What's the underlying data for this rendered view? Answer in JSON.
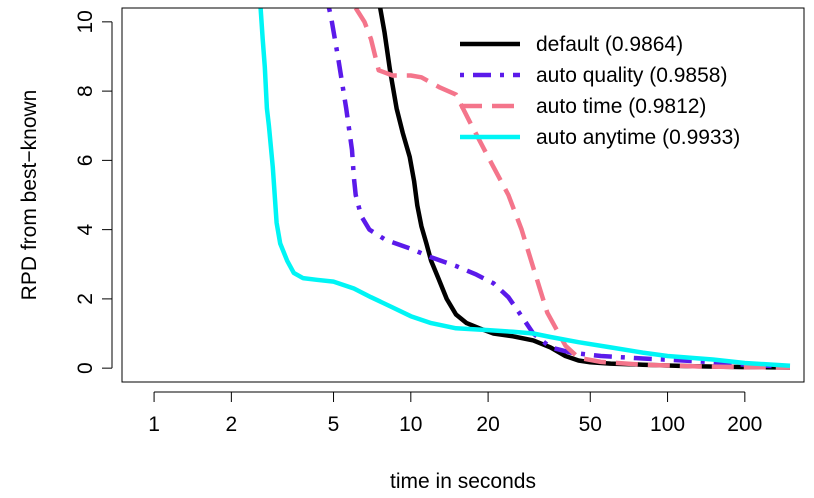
{
  "chart_data": {
    "type": "line",
    "xlabel": "time in seconds",
    "ylabel": "RPD from best−known",
    "xscale": "log",
    "xlim": [
      0.75,
      340
    ],
    "ylim": [
      -0.4,
      10.4
    ],
    "xticks": [
      1,
      2,
      5,
      10,
      20,
      50,
      100,
      200
    ],
    "yticks": [
      0,
      2,
      4,
      6,
      8,
      10
    ],
    "grid": false,
    "legend_position": "top-right",
    "series": [
      {
        "name": "default (0.9864)",
        "color": "#000000",
        "dash": "solid",
        "points": [
          [
            7.6,
            10.4
          ],
          [
            7.9,
            9.7
          ],
          [
            8.3,
            8.6
          ],
          [
            8.8,
            7.5
          ],
          [
            9.3,
            6.8
          ],
          [
            9.9,
            6.1
          ],
          [
            10.3,
            5.4
          ],
          [
            10.6,
            4.7
          ],
          [
            11.0,
            4.1
          ],
          [
            11.5,
            3.6
          ],
          [
            12.0,
            3.1
          ],
          [
            12.8,
            2.6
          ],
          [
            13.8,
            2.0
          ],
          [
            15.0,
            1.55
          ],
          [
            16.5,
            1.3
          ],
          [
            18.5,
            1.15
          ],
          [
            21,
            1.0
          ],
          [
            25,
            0.92
          ],
          [
            30,
            0.8
          ],
          [
            35,
            0.6
          ],
          [
            40,
            0.35
          ],
          [
            45,
            0.22
          ],
          [
            50,
            0.17
          ],
          [
            60,
            0.13
          ],
          [
            80,
            0.1
          ],
          [
            120,
            0.06
          ],
          [
            200,
            0.03
          ],
          [
            300,
            0.02
          ]
        ]
      },
      {
        "name": "auto quality (0.9858)",
        "color": "#5b1aea",
        "dash": "dashdot",
        "points": [
          [
            4.8,
            10.4
          ],
          [
            4.9,
            10.1
          ],
          [
            5.2,
            9.0
          ],
          [
            5.6,
            7.5
          ],
          [
            5.9,
            6.3
          ],
          [
            6.0,
            5.5
          ],
          [
            6.1,
            5.0
          ],
          [
            6.4,
            4.4
          ],
          [
            6.9,
            4.0
          ],
          [
            8.0,
            3.7
          ],
          [
            10.0,
            3.45
          ],
          [
            12.0,
            3.2
          ],
          [
            15.0,
            2.95
          ],
          [
            18.0,
            2.7
          ],
          [
            21.0,
            2.45
          ],
          [
            24.0,
            2.05
          ],
          [
            27.0,
            1.5
          ],
          [
            30.0,
            1.0
          ],
          [
            35.0,
            0.6
          ],
          [
            42.0,
            0.45
          ],
          [
            55.0,
            0.35
          ],
          [
            80.0,
            0.28
          ],
          [
            130.0,
            0.2
          ],
          [
            200.0,
            0.1
          ],
          [
            300.0,
            0.04
          ]
        ]
      },
      {
        "name": "auto time (0.9812)",
        "color": "#f4758b",
        "dash": "dashed",
        "points": [
          [
            6.1,
            10.4
          ],
          [
            6.6,
            10.0
          ],
          [
            7.0,
            9.5
          ],
          [
            7.5,
            8.6
          ],
          [
            8.5,
            8.45
          ],
          [
            10.0,
            8.45
          ],
          [
            11.0,
            8.4
          ],
          [
            13.0,
            8.1
          ],
          [
            15.0,
            7.9
          ],
          [
            17.0,
            7.1
          ],
          [
            20.0,
            6.1
          ],
          [
            24.0,
            5.0
          ],
          [
            27.0,
            4.0
          ],
          [
            30.0,
            2.9
          ],
          [
            34.0,
            1.6
          ],
          [
            40.0,
            0.65
          ],
          [
            45.0,
            0.3
          ],
          [
            55.0,
            0.18
          ],
          [
            80.0,
            0.1
          ],
          [
            130.0,
            0.05
          ],
          [
            200.0,
            0.03
          ],
          [
            300.0,
            0.02
          ]
        ]
      },
      {
        "name": "auto anytime (0.9933)",
        "color": "#00f5f5",
        "dash": "solid",
        "points": [
          [
            2.6,
            10.4
          ],
          [
            2.65,
            9.5
          ],
          [
            2.7,
            8.7
          ],
          [
            2.75,
            7.5
          ],
          [
            2.8,
            7.0
          ],
          [
            2.9,
            5.8
          ],
          [
            3.0,
            4.2
          ],
          [
            3.1,
            3.6
          ],
          [
            3.3,
            3.1
          ],
          [
            3.5,
            2.75
          ],
          [
            3.8,
            2.6
          ],
          [
            4.3,
            2.55
          ],
          [
            5.0,
            2.5
          ],
          [
            6.0,
            2.3
          ],
          [
            7.0,
            2.05
          ],
          [
            8.5,
            1.75
          ],
          [
            10.0,
            1.5
          ],
          [
            12.0,
            1.3
          ],
          [
            15.0,
            1.15
          ],
          [
            20.0,
            1.1
          ],
          [
            25.0,
            1.05
          ],
          [
            30.0,
            1.0
          ],
          [
            35.0,
            0.9
          ],
          [
            45.0,
            0.75
          ],
          [
            60.0,
            0.6
          ],
          [
            80.0,
            0.45
          ],
          [
            100.0,
            0.35
          ],
          [
            150.0,
            0.25
          ],
          [
            200.0,
            0.15
          ],
          [
            300.0,
            0.07
          ]
        ]
      }
    ]
  }
}
